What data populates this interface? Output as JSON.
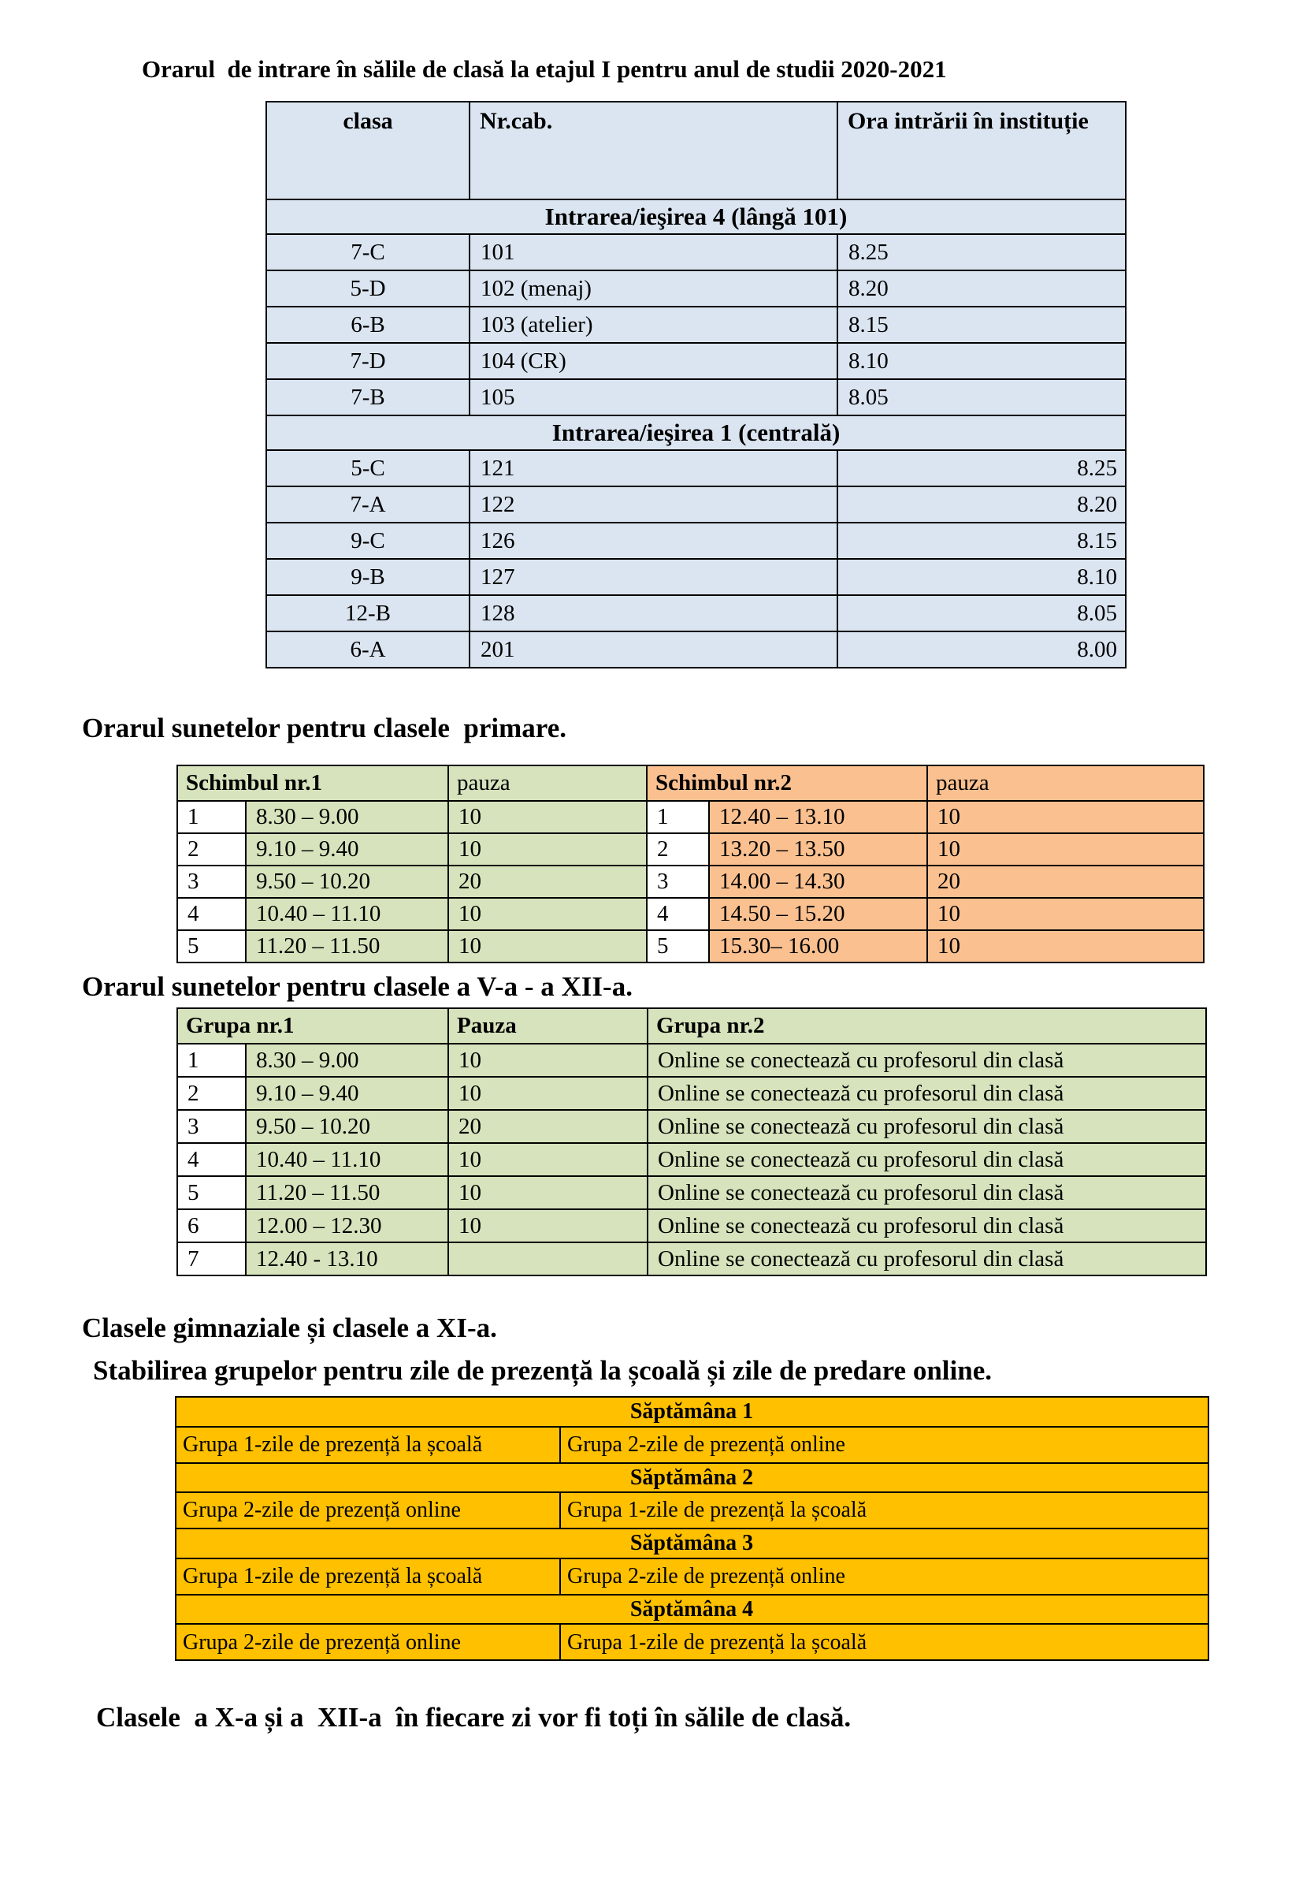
{
  "title": "Orarul  de intrare în sălile de clasă la etajul I pentru anul de studii 2020-2021",
  "entry_table": {
    "headers": [
      "clasa",
      "Nr.cab.",
      "Ora intrării în instituție"
    ],
    "sections": [
      {
        "title": "Intrarea/ieşirea 4 (lângă 101)",
        "rows": [
          [
            "7-C",
            "101",
            "8.25"
          ],
          [
            "5-D",
            "102 (menaj)",
            "8.20"
          ],
          [
            "6-B",
            "103 (atelier)",
            "8.15"
          ],
          [
            "7-D",
            "104 (CR)",
            "8.10"
          ],
          [
            "7-B",
            "105",
            "8.05"
          ]
        ]
      },
      {
        "title": "Intrarea/ieşirea 1 (centrală)",
        "rows": [
          [
            "5-C",
            "121",
            "8.25"
          ],
          [
            "7-A",
            "122",
            "8.20"
          ],
          [
            "9-C",
            "126",
            "8.15"
          ],
          [
            "9-B",
            "127",
            "8.10"
          ],
          [
            "12-B",
            "128",
            "8.05"
          ],
          [
            "6-A",
            "201",
            "8.00"
          ]
        ]
      }
    ]
  },
  "primary_heading": "Orarul sunetelor pentru clasele  primare.",
  "primary_bells": {
    "shift1": {
      "title": "Schimbul nr.1",
      "pause_label": "pauza"
    },
    "shift2": {
      "title": "Schimbul nr.2",
      "pause_label": "pauza"
    },
    "rows": [
      [
        "1",
        "8.30 – 9.00",
        "10",
        "1",
        "12.40 – 13.10",
        "10"
      ],
      [
        "2",
        "9.10 – 9.40",
        "10",
        "2",
        "13.20 – 13.50",
        "10"
      ],
      [
        "3",
        "9.50 – 10.20",
        "20",
        "3",
        "14.00 – 14.30",
        "20"
      ],
      [
        "4",
        "10.40 – 11.10",
        "10",
        "4",
        "14.50 – 15.20",
        "10"
      ],
      [
        "5",
        "11.20 – 11.50",
        "10",
        "5",
        "15.30– 16.00",
        "10"
      ]
    ]
  },
  "secondary_heading": "Orarul sunetelor pentru clasele a V-a - a XII-a.",
  "group_bells": {
    "headers": {
      "group1": "Grupa nr.1",
      "pause": "Pauza",
      "group2": "Grupa nr.2"
    },
    "rows": [
      [
        "1",
        "8.30 – 9.00",
        "10",
        "Online se conectează cu profesorul din clasă"
      ],
      [
        "2",
        "9.10 – 9.40",
        "10",
        "Online se conectează cu profesorul din clasă"
      ],
      [
        "3",
        "9.50 – 10.20",
        "20",
        "Online se conectează cu profesorul din clasă"
      ],
      [
        "4",
        "10.40 – 11.10",
        "10",
        "Online se conectează cu profesorul din clasă"
      ],
      [
        "5",
        "11.20 – 11.50",
        "10",
        "Online se conectează cu profesorul din clasă"
      ],
      [
        "6",
        "12.00 – 12.30",
        "10",
        "Online se conectează cu profesorul din clasă"
      ],
      [
        "7",
        "12.40 - 13.10",
        "",
        "Online se conectează cu profesorul din clasă"
      ]
    ]
  },
  "gym_heading": "Clasele gimnaziale și clasele a XI-a.",
  "stabilire_heading": "Stabilirea grupelor pentru zile de prezență la școală și zile de predare online.",
  "weeks": {
    "rows": [
      {
        "week": "Săptămâna 1",
        "left": "Grupa 1-zile de prezență la școală",
        "right": "Grupa 2-zile de prezență online"
      },
      {
        "week": "Săptămâna 2",
        "left": "Grupa 2-zile de prezență online",
        "right": "Grupa 1-zile de prezență la școală"
      },
      {
        "week": "Săptămâna 3",
        "left": "Grupa 1-zile de prezență la școală",
        "right": "Grupa 2-zile de prezență online"
      },
      {
        "week": "Săptămâna 4",
        "left": "Grupa 2-zile de prezență online",
        "right": "Grupa 1-zile de prezență la școală"
      }
    ]
  },
  "footer_note": "Clasele  a X-a și a  XII-a  în fiecare zi vor fi toți în sălile de clasă.",
  "colors": {
    "light_blue": "#dbe5f1",
    "light_green": "#d6e3bc",
    "light_orange": "#fac090",
    "gold": "#ffc000"
  }
}
